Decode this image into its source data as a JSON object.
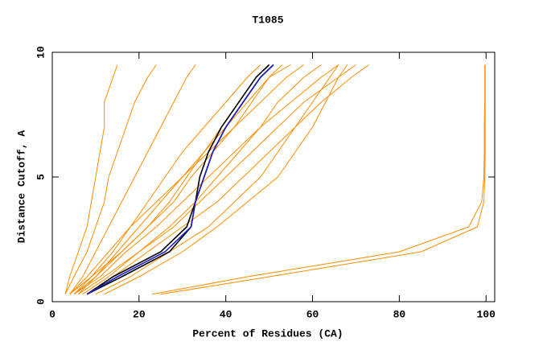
{
  "chart_data": {
    "type": "line",
    "title": "T1085",
    "xlabel": "Percent of Residues (CA)",
    "ylabel": "Distance Cutoff, A",
    "xlim": [
      0,
      102
    ],
    "ylim": [
      0,
      10
    ],
    "xticks": [
      0,
      20,
      40,
      60,
      80,
      100
    ],
    "yticks": [
      0,
      5,
      10
    ],
    "series": [
      {
        "color": "#ff8c00",
        "x": [
          3,
          4,
          6,
          8,
          9,
          10,
          11,
          12,
          12,
          14,
          15
        ],
        "values": [
          0.3,
          1,
          2,
          3,
          4,
          5,
          6,
          7,
          8,
          9,
          9.5
        ]
      },
      {
        "color": "#ff8c00",
        "x": [
          3,
          5,
          8,
          10,
          12,
          13,
          15,
          17,
          19,
          22,
          24
        ],
        "values": [
          0.3,
          1,
          2,
          3,
          4,
          5,
          6,
          7,
          8,
          9,
          9.5
        ]
      },
      {
        "color": "#ff8c00",
        "x": [
          4,
          7,
          10,
          13,
          16,
          19,
          22,
          25,
          28,
          31,
          33
        ],
        "values": [
          0.3,
          1,
          2,
          3,
          4,
          5,
          6,
          7,
          8,
          9,
          9.5
        ]
      },
      {
        "color": "#ff8c00",
        "x": [
          5,
          9,
          14,
          18,
          22,
          26,
          30,
          35,
          40,
          45,
          48
        ],
        "values": [
          0.3,
          1,
          2,
          3,
          4,
          5,
          6,
          7,
          8,
          9,
          9.5
        ]
      },
      {
        "color": "#ff8c00",
        "x": [
          6,
          10,
          15,
          20,
          25,
          30,
          35,
          40,
          45,
          50,
          53
        ],
        "values": [
          0.3,
          1,
          2,
          3,
          4,
          5,
          6,
          7,
          8,
          9,
          9.5
        ]
      },
      {
        "color": "#ff8c00",
        "x": [
          4,
          8,
          13,
          18,
          24,
          30,
          36,
          42,
          48,
          54,
          58
        ],
        "values": [
          0.3,
          1,
          2,
          3,
          4,
          5,
          6,
          7,
          8,
          9,
          9.5
        ]
      },
      {
        "color": "#ff8c00",
        "x": [
          5,
          11,
          17,
          24,
          30,
          36,
          42,
          48,
          55,
          62,
          66
        ],
        "values": [
          0.3,
          1,
          2,
          3,
          4,
          5,
          6,
          7,
          8,
          9,
          9.5
        ]
      },
      {
        "color": "#ff8c00",
        "x": [
          6,
          12,
          20,
          28,
          34,
          40,
          46,
          52,
          58,
          66,
          70
        ],
        "values": [
          0.3,
          1,
          2,
          3,
          4,
          5,
          6,
          7,
          8,
          9,
          9.5
        ]
      },
      {
        "color": "#ff8c00",
        "x": [
          8,
          14,
          22,
          30,
          38,
          44,
          50,
          56,
          62,
          69,
          73
        ],
        "values": [
          0.3,
          1,
          2,
          3,
          4,
          5,
          6,
          7,
          8,
          9,
          9.5
        ]
      },
      {
        "color": "#ff8c00",
        "x": [
          10,
          18,
          27,
          36,
          42,
          48,
          52,
          56,
          60,
          64,
          66
        ],
        "values": [
          0.3,
          1,
          2,
          3,
          4,
          5,
          6,
          7,
          8,
          9,
          9.5
        ]
      },
      {
        "color": "#ff8c00",
        "x": [
          7,
          13,
          20,
          27,
          33,
          38,
          43,
          48,
          52,
          58,
          62
        ],
        "values": [
          0.3,
          1,
          2,
          3,
          4,
          5,
          6,
          7,
          8,
          9,
          9.5
        ]
      },
      {
        "color": "#ff8c00",
        "x": [
          12,
          20,
          30,
          38,
          45,
          52,
          56,
          60,
          63,
          66,
          68
        ],
        "values": [
          0.3,
          1,
          2,
          3,
          4,
          5,
          6,
          7,
          8,
          9,
          9.5
        ]
      },
      {
        "color": "#ff8c00",
        "x": [
          4,
          9,
          16,
          22,
          27,
          31,
          35,
          39,
          43,
          47,
          50
        ],
        "values": [
          0.3,
          1,
          2,
          3,
          4,
          5,
          6,
          7,
          8,
          9,
          9.5
        ]
      },
      {
        "color": "#ff8c00",
        "x": [
          5,
          10,
          16,
          22,
          28,
          32,
          37,
          42,
          46,
          50,
          55
        ],
        "values": [
          0.3,
          1,
          2,
          3,
          4,
          5,
          6,
          7,
          8,
          9,
          9.5
        ]
      },
      {
        "color": "#ff8c00",
        "x": [
          23,
          45,
          80,
          96,
          99,
          99.5,
          99.6,
          99.6,
          99.7,
          99.7,
          99.7
        ],
        "values": [
          0.3,
          1,
          2,
          3,
          4,
          5,
          6,
          7,
          8,
          9,
          9.5
        ]
      },
      {
        "color": "#ff8c00",
        "x": [
          25,
          50,
          85,
          98,
          99.5,
          99.7,
          99.8,
          99.8,
          99.8,
          99.8,
          99.8
        ],
        "values": [
          0.3,
          1,
          2,
          3,
          4,
          5,
          6,
          7,
          8,
          9,
          9.5
        ]
      },
      {
        "color": "#000000",
        "x": [
          8,
          16,
          27,
          32,
          33,
          34,
          36,
          39,
          43,
          47,
          50
        ],
        "values": [
          0.3,
          1,
          2,
          3,
          4,
          5,
          6,
          7,
          8,
          9,
          9.5
        ]
      },
      {
        "color": "#000000",
        "x": [
          8,
          14,
          25,
          31,
          33,
          35,
          37,
          40,
          44,
          48,
          51
        ],
        "values": [
          0.3,
          1,
          2,
          3,
          4,
          5,
          6,
          7,
          8,
          9,
          9.5
        ]
      },
      {
        "color": "#2020c0",
        "x": [
          8,
          15,
          26,
          32,
          33,
          35,
          37,
          40,
          44,
          48,
          51
        ],
        "values": [
          0.3,
          1,
          2,
          3,
          4,
          5,
          6,
          7,
          8,
          9,
          9.5
        ]
      }
    ]
  }
}
